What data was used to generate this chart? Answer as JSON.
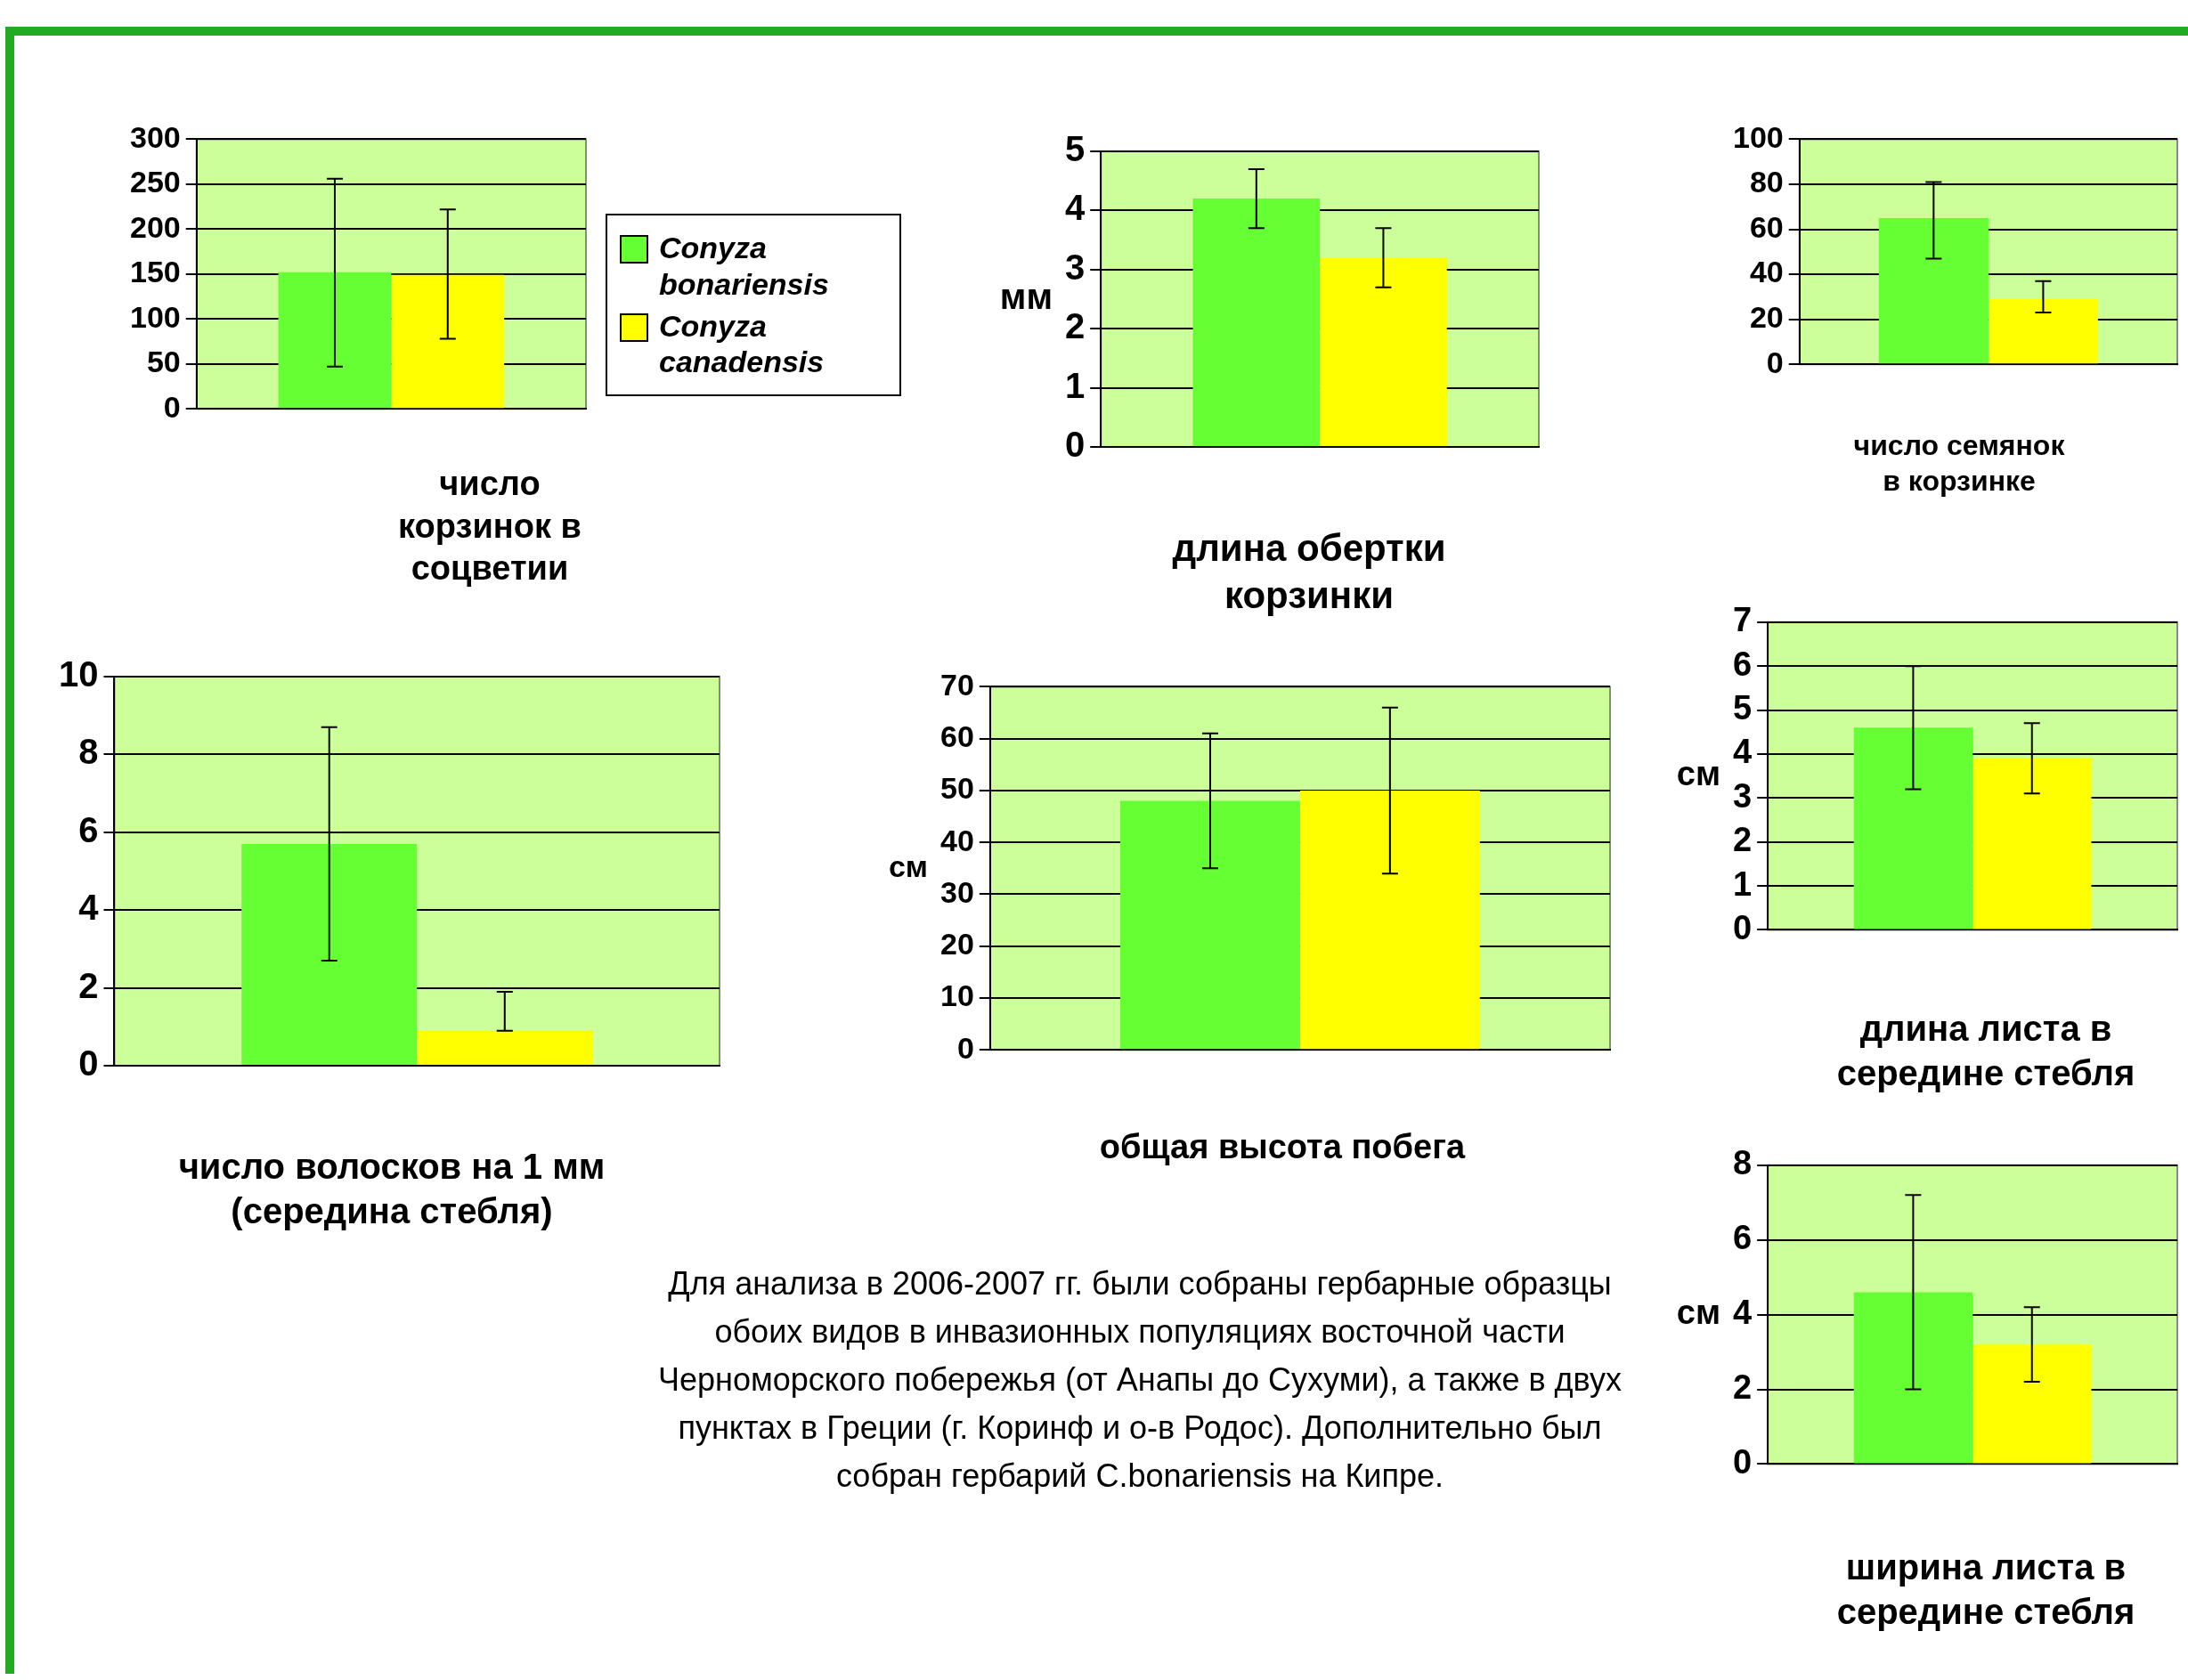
{
  "chart_data": [
    {
      "type": "bar",
      "xlabel": "число корзинок в соцветии",
      "categories": [
        null
      ],
      "ylim": [
        0,
        300
      ],
      "yticks": [
        0,
        50,
        100,
        150,
        200,
        250,
        300
      ],
      "grid": "y",
      "legend": "right",
      "series": [
        {
          "name": "Conyza bonariensis",
          "color": "#66ff33",
          "values": [
            152
          ],
          "errors": [
            [
              47,
              256
            ]
          ]
        },
        {
          "name": "Conyza canadensis",
          "color": "#ffff00",
          "values": [
            149
          ],
          "errors": [
            [
              78,
              222
            ]
          ]
        }
      ]
    },
    {
      "type": "bar",
      "xlabel": "длина обертки корзинки",
      "ylabel": "мм",
      "categories": [
        null
      ],
      "ylim": [
        0,
        5
      ],
      "yticks": [
        0,
        1,
        2,
        3,
        4,
        5
      ],
      "grid": "y",
      "series": [
        {
          "color": "#66ff33",
          "values": [
            4.2
          ],
          "errors": [
            [
              3.7,
              4.7
            ]
          ]
        },
        {
          "color": "#ffff00",
          "values": [
            3.2
          ],
          "errors": [
            [
              2.7,
              3.7
            ]
          ]
        }
      ]
    },
    {
      "type": "bar",
      "xlabel": "число семянок в корзинке",
      "categories": [
        null
      ],
      "ylim": [
        0,
        100
      ],
      "yticks": [
        0,
        20,
        40,
        60,
        80,
        100
      ],
      "grid": "y",
      "series": [
        {
          "color": "#66ff33",
          "values": [
            65
          ],
          "errors": [
            [
              47,
              81
            ]
          ]
        },
        {
          "color": "#ffff00",
          "values": [
            29
          ],
          "errors": [
            [
              23,
              37
            ]
          ]
        }
      ]
    },
    {
      "type": "bar",
      "xlabel": "число волосков на 1 мм (середина стебля)",
      "categories": [
        null
      ],
      "ylim": [
        0,
        10
      ],
      "yticks": [
        0,
        2,
        4,
        6,
        8,
        10
      ],
      "grid": "y",
      "series": [
        {
          "color": "#66ff33",
          "values": [
            5.7
          ],
          "errors": [
            [
              2.7,
              8.7
            ]
          ]
        },
        {
          "color": "#ffff00",
          "values": [
            0.9
          ],
          "errors": [
            [
              0.9,
              1.9
            ]
          ]
        }
      ]
    },
    {
      "type": "bar",
      "xlabel": "общая высота побега",
      "ylabel": "см",
      "categories": [
        null
      ],
      "ylim": [
        0,
        70
      ],
      "yticks": [
        0,
        10,
        20,
        30,
        40,
        50,
        60,
        70
      ],
      "grid": "y",
      "annotations": [
        "Для анализа в 2006-2007 гг. были собраны гербарные образцы обоих видов в инвазионных популяциях восточной части Черноморского побережья (от Анапы до Сухуми), а также в двух пунктах в Греции (г. Коринф и о-в Родос). Дополнительно был собран гербарий C.bonariensis на Кипре."
      ],
      "series": [
        {
          "color": "#66ff33",
          "values": [
            48
          ],
          "errors": [
            [
              35,
              61
            ]
          ]
        },
        {
          "color": "#ffff00",
          "values": [
            50
          ],
          "errors": [
            [
              34,
              66
            ]
          ]
        }
      ]
    },
    {
      "type": "bar",
      "xlabel": "длина листа в середине стебля",
      "ylabel": "см",
      "categories": [
        null
      ],
      "ylim": [
        0,
        7
      ],
      "yticks": [
        0,
        1,
        2,
        3,
        4,
        5,
        6,
        7
      ],
      "grid": "y",
      "series": [
        {
          "color": "#66ff33",
          "values": [
            4.6
          ],
          "errors": [
            [
              3.2,
              6.0
            ]
          ]
        },
        {
          "color": "#ffff00",
          "values": [
            3.9
          ],
          "errors": [
            [
              3.1,
              4.7
            ]
          ]
        }
      ]
    },
    {
      "type": "bar",
      "xlabel": "ширина листа в середине стебля",
      "ylabel": "см",
      "categories": [
        null
      ],
      "ylim": [
        0,
        8
      ],
      "yticks": [
        0,
        2,
        4,
        6,
        8
      ],
      "grid": "y",
      "series": [
        {
          "color": "#66ff33",
          "values": [
            4.6
          ],
          "errors": [
            [
              2.0,
              7.2
            ]
          ]
        },
        {
          "color": "#ffff00",
          "values": [
            3.2
          ],
          "errors": [
            [
              2.2,
              4.2
            ]
          ]
        }
      ]
    }
  ]
}
